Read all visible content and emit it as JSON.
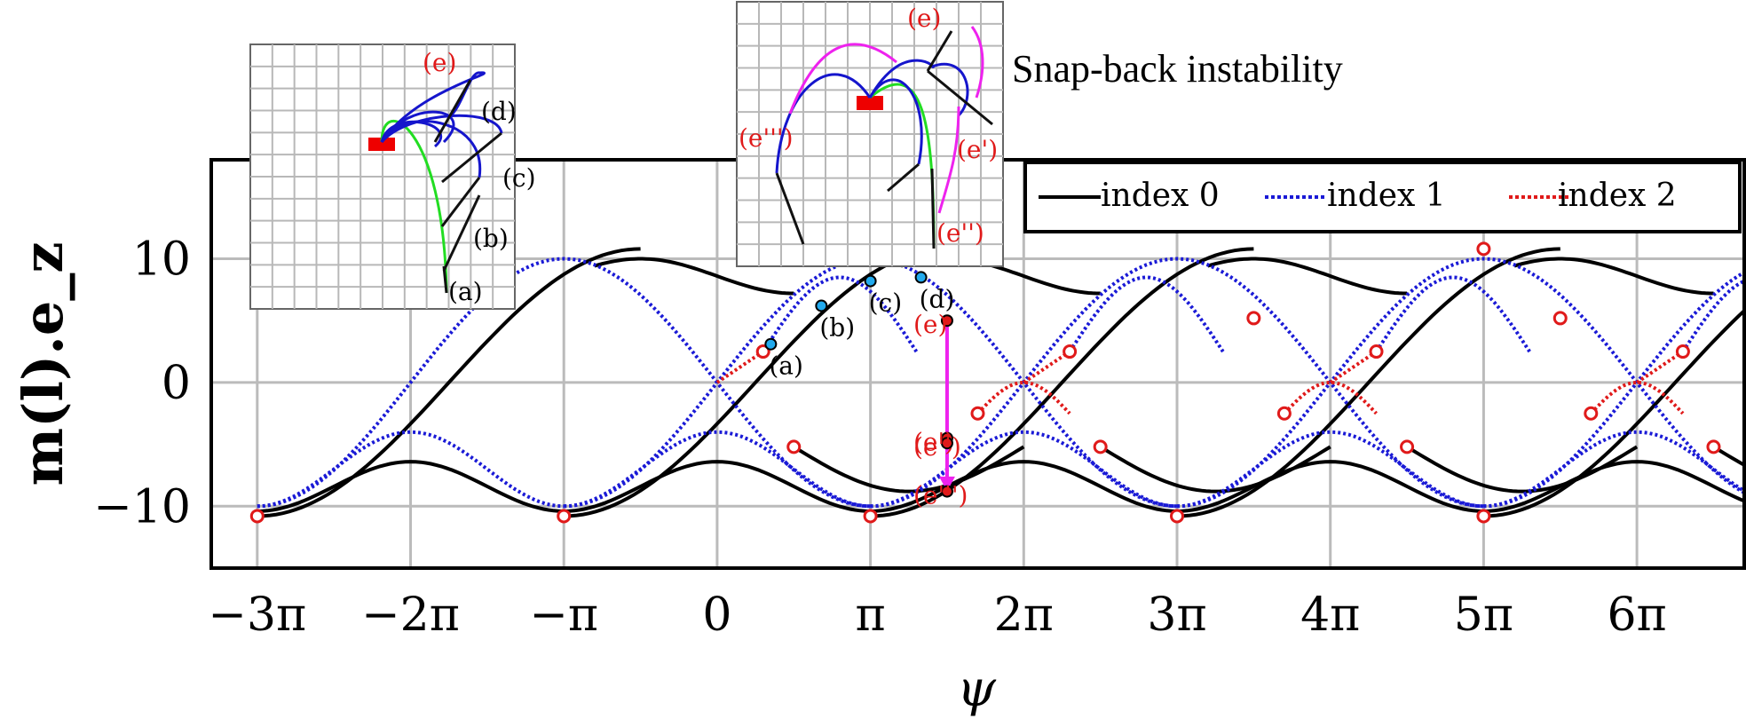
{
  "annotation": "Snap-back instability",
  "chart_data": {
    "type": "line",
    "title": "",
    "xlabel": "ψ",
    "ylabel": "m(l).e_z",
    "xlim_pi": [
      -3.3,
      6.7
    ],
    "ylim": [
      -15,
      18
    ],
    "grid": true,
    "legend_position": "top-right",
    "x_ticks": [
      {
        "v": -3,
        "label": "−3π"
      },
      {
        "v": -2,
        "label": "−2π"
      },
      {
        "v": -1,
        "label": "−π"
      },
      {
        "v": 0,
        "label": "0"
      },
      {
        "v": 1,
        "label": "π"
      },
      {
        "v": 2,
        "label": "2π"
      },
      {
        "v": 3,
        "label": "3π"
      },
      {
        "v": 4,
        "label": "4π"
      },
      {
        "v": 5,
        "label": "5π"
      },
      {
        "v": 6,
        "label": "6π"
      }
    ],
    "y_ticks": [
      {
        "v": 10,
        "label": "10"
      },
      {
        "v": 0,
        "label": "0"
      },
      {
        "v": -10,
        "label": "−10"
      }
    ],
    "series": [
      {
        "name": "index 0",
        "color": "#000000",
        "style": "solid"
      },
      {
        "name": "index 1",
        "color": "#1a1ad6",
        "style": "dotted"
      },
      {
        "name": "index 2",
        "color": "#e01a1a",
        "style": "dotted"
      }
    ],
    "bifurcation_points_pi": [
      [
        -3,
        -10.8
      ],
      [
        -1,
        -10.8
      ],
      [
        1,
        -10.8
      ],
      [
        3,
        -10.8
      ],
      [
        5,
        -10.8
      ],
      [
        0.3,
        2.5
      ],
      [
        2.3,
        2.5
      ],
      [
        4.3,
        2.5
      ],
      [
        6.3,
        2.5
      ],
      [
        0.5,
        -5.2
      ],
      [
        2.5,
        -5.2
      ],
      [
        4.5,
        -5.2
      ],
      [
        6.5,
        -5.2
      ],
      [
        1.7,
        -2.5
      ],
      [
        3.7,
        -2.5
      ],
      [
        5.7,
        -2.5
      ],
      [
        3.5,
        5.2
      ],
      [
        5.5,
        5.2
      ],
      [
        5,
        10.8
      ]
    ],
    "path_points": [
      {
        "label": "(a)",
        "x_pi": 0.35,
        "y": 3.1
      },
      {
        "label": "(b)",
        "x_pi": 0.68,
        "y": 6.2
      },
      {
        "label": "(c)",
        "x_pi": 1.0,
        "y": 8.2
      },
      {
        "label": "(d)",
        "x_pi": 1.33,
        "y": 8.5
      },
      {
        "label": "(e)",
        "x_pi": 1.5,
        "y": 5.0
      },
      {
        "label": "(e')",
        "x_pi": 1.5,
        "y": -4.5
      },
      {
        "label": "(e'')",
        "x_pi": 1.5,
        "y": -4.9
      },
      {
        "label": "(e''')",
        "x_pi": 1.5,
        "y": -8.8
      }
    ]
  },
  "inset_left_labels": [
    "(e)",
    "(d)",
    "(c)",
    "(b)",
    "(a)"
  ],
  "inset_right_labels": [
    "(e)",
    "(e''')",
    "(e')",
    "(e'')"
  ]
}
